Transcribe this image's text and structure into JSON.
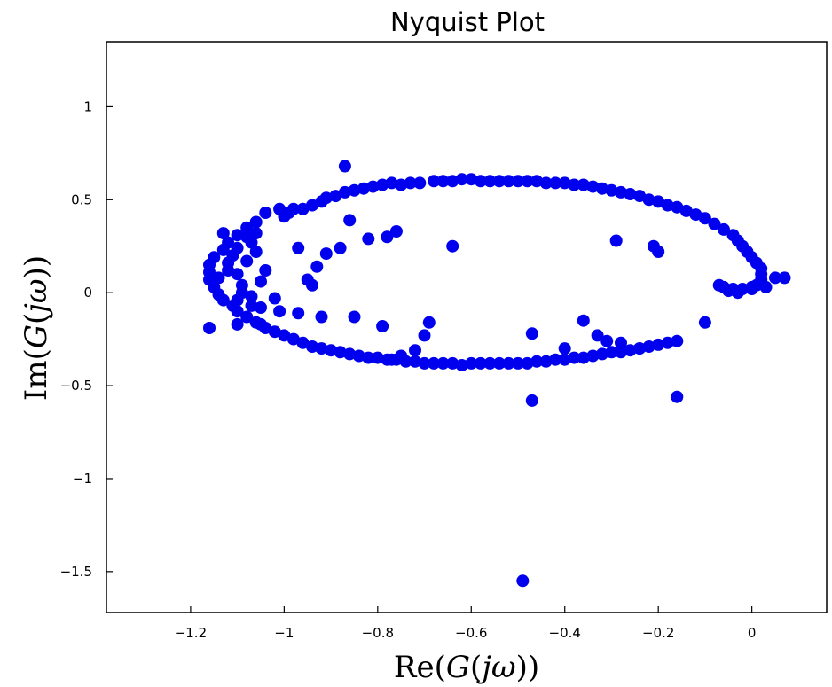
{
  "chart_data": {
    "type": "scatter",
    "title": "Nyquist Plot",
    "xlabel": {
      "pre": "Re(",
      "g": "G",
      "open": "(",
      "j": "j",
      "w": "ω",
      "close": "))"
    },
    "ylabel": {
      "pre": "Im(",
      "g": "G",
      "open": "(",
      "j": "j",
      "w": "ω",
      "close": "))"
    },
    "xlim": [
      -1.38,
      0.16
    ],
    "ylim": [
      -1.72,
      1.35
    ],
    "xticks": [
      {
        "v": -1.2,
        "label": "−1.2"
      },
      {
        "v": -1.0,
        "label": "−1"
      },
      {
        "v": -0.8,
        "label": "−0.8"
      },
      {
        "v": -0.6,
        "label": "−0.6"
      },
      {
        "v": -0.4,
        "label": "−0.4"
      },
      {
        "v": -0.2,
        "label": "−0.2"
      },
      {
        "v": 0.0,
        "label": "0"
      }
    ],
    "yticks": [
      {
        "v": 1.0,
        "label": "1"
      },
      {
        "v": 0.5,
        "label": "0.5"
      },
      {
        "v": 0.0,
        "label": "0"
      },
      {
        "v": -0.5,
        "label": "−0.5"
      },
      {
        "v": -1.0,
        "label": "−1"
      },
      {
        "v": -1.5,
        "label": "−1.5"
      }
    ],
    "grid": false,
    "marker_color": "#0000ee",
    "points": [
      [
        -0.91,
        0.21
      ],
      [
        -0.97,
        0.24
      ],
      [
        -1.01,
        0.45
      ],
      [
        -1.0,
        0.41
      ],
      [
        -0.99,
        0.43
      ],
      [
        -0.98,
        0.45
      ],
      [
        -0.96,
        0.45
      ],
      [
        -0.94,
        0.47
      ],
      [
        -0.92,
        0.49
      ],
      [
        -0.91,
        0.51
      ],
      [
        -0.89,
        0.52
      ],
      [
        -0.87,
        0.54
      ],
      [
        -0.85,
        0.55
      ],
      [
        -0.83,
        0.56
      ],
      [
        -0.81,
        0.57
      ],
      [
        -0.79,
        0.58
      ],
      [
        -0.77,
        0.59
      ],
      [
        -0.75,
        0.58
      ],
      [
        -0.73,
        0.59
      ],
      [
        -0.71,
        0.59
      ],
      [
        -0.68,
        0.6
      ],
      [
        -0.66,
        0.6
      ],
      [
        -0.64,
        0.6
      ],
      [
        -0.62,
        0.61
      ],
      [
        -0.6,
        0.61
      ],
      [
        -0.58,
        0.6
      ],
      [
        -0.56,
        0.6
      ],
      [
        -0.54,
        0.6
      ],
      [
        -0.52,
        0.6
      ],
      [
        -0.5,
        0.6
      ],
      [
        -0.48,
        0.6
      ],
      [
        -0.46,
        0.6
      ],
      [
        -0.44,
        0.59
      ],
      [
        -0.42,
        0.59
      ],
      [
        -0.4,
        0.59
      ],
      [
        -0.38,
        0.58
      ],
      [
        -0.36,
        0.58
      ],
      [
        -0.34,
        0.57
      ],
      [
        -0.32,
        0.56
      ],
      [
        -0.3,
        0.55
      ],
      [
        -0.28,
        0.54
      ],
      [
        -0.26,
        0.53
      ],
      [
        -0.24,
        0.52
      ],
      [
        -0.22,
        0.5
      ],
      [
        -0.2,
        0.49
      ],
      [
        -0.18,
        0.47
      ],
      [
        -0.16,
        0.46
      ],
      [
        -0.14,
        0.44
      ],
      [
        -0.12,
        0.42
      ],
      [
        -0.1,
        0.4
      ],
      [
        -0.08,
        0.37
      ],
      [
        -0.06,
        0.34
      ],
      [
        -0.04,
        0.31
      ],
      [
        -0.03,
        0.28
      ],
      [
        -0.02,
        0.25
      ],
      [
        -0.01,
        0.22
      ],
      [
        0.0,
        0.19
      ],
      [
        0.01,
        0.16
      ],
      [
        0.02,
        0.13
      ],
      [
        0.02,
        0.1
      ],
      [
        0.02,
        0.07
      ],
      [
        0.01,
        0.04
      ],
      [
        0.0,
        0.03
      ],
      [
        -0.02,
        0.02
      ],
      [
        -0.04,
        0.02
      ],
      [
        -0.06,
        0.03
      ],
      [
        -0.07,
        0.04
      ],
      [
        -0.05,
        0.01
      ],
      [
        -0.03,
        0.0
      ],
      [
        0.0,
        0.02
      ],
      [
        0.03,
        0.03
      ],
      [
        0.05,
        0.08
      ],
      [
        0.07,
        0.08
      ],
      [
        -1.04,
        0.43
      ],
      [
        -1.06,
        0.38
      ],
      [
        -1.08,
        0.35
      ],
      [
        -1.1,
        0.31
      ],
      [
        -1.12,
        0.27
      ],
      [
        -1.13,
        0.23
      ],
      [
        -1.15,
        0.19
      ],
      [
        -1.16,
        0.15
      ],
      [
        -1.16,
        0.11
      ],
      [
        -1.16,
        0.07
      ],
      [
        -1.15,
        0.03
      ],
      [
        -1.14,
        -0.01
      ],
      [
        -1.13,
        -0.04
      ],
      [
        -1.11,
        -0.07
      ],
      [
        -1.1,
        -0.1
      ],
      [
        -1.08,
        -0.13
      ],
      [
        -1.06,
        -0.16
      ],
      [
        -1.04,
        -0.19
      ],
      [
        -1.02,
        -0.21
      ],
      [
        -1.0,
        -0.23
      ],
      [
        -0.98,
        -0.25
      ],
      [
        -0.96,
        -0.27
      ],
      [
        -0.94,
        -0.29
      ],
      [
        -0.92,
        -0.3
      ],
      [
        -0.9,
        -0.31
      ],
      [
        -0.88,
        -0.32
      ],
      [
        -0.86,
        -0.33
      ],
      [
        -0.84,
        -0.34
      ],
      [
        -0.82,
        -0.35
      ],
      [
        -0.8,
        -0.35
      ],
      [
        -0.78,
        -0.36
      ],
      [
        -0.76,
        -0.36
      ],
      [
        -0.74,
        -0.37
      ],
      [
        -0.72,
        -0.37
      ],
      [
        -0.7,
        -0.38
      ],
      [
        -0.68,
        -0.38
      ],
      [
        -0.66,
        -0.38
      ],
      [
        -0.64,
        -0.38
      ],
      [
        -0.62,
        -0.39
      ],
      [
        -0.6,
        -0.38
      ],
      [
        -0.58,
        -0.38
      ],
      [
        -0.56,
        -0.38
      ],
      [
        -0.54,
        -0.38
      ],
      [
        -0.52,
        -0.38
      ],
      [
        -0.5,
        -0.38
      ],
      [
        -0.48,
        -0.38
      ],
      [
        -0.46,
        -0.37
      ],
      [
        -0.44,
        -0.37
      ],
      [
        -0.42,
        -0.36
      ],
      [
        -0.4,
        -0.36
      ],
      [
        -0.38,
        -0.35
      ],
      [
        -0.36,
        -0.35
      ],
      [
        -0.34,
        -0.34
      ],
      [
        -0.32,
        -0.33
      ],
      [
        -0.3,
        -0.32
      ],
      [
        -0.28,
        -0.32
      ],
      [
        -0.26,
        -0.31
      ],
      [
        -0.24,
        -0.3
      ],
      [
        -0.22,
        -0.29
      ],
      [
        -0.2,
        -0.28
      ],
      [
        -0.18,
        -0.27
      ],
      [
        -0.16,
        -0.26
      ],
      [
        -1.1,
        0.24
      ],
      [
        -1.08,
        0.3
      ],
      [
        -1.12,
        0.16
      ],
      [
        -1.1,
        0.1
      ],
      [
        -1.09,
        0.04
      ],
      [
        -1.07,
        -0.02
      ],
      [
        -1.05,
        -0.08
      ],
      [
        -1.13,
        0.32
      ],
      [
        -1.11,
        0.2
      ],
      [
        -1.14,
        0.08
      ],
      [
        -1.12,
        0.12
      ],
      [
        -1.06,
        0.22
      ],
      [
        -1.04,
        0.12
      ],
      [
        -1.05,
        0.06
      ],
      [
        -1.08,
        0.17
      ],
      [
        -1.07,
        0.27
      ],
      [
        -1.06,
        0.32
      ],
      [
        -1.09,
        0.0
      ],
      [
        -1.07,
        -0.07
      ],
      [
        -1.1,
        -0.04
      ],
      [
        -0.87,
        0.68
      ],
      [
        -0.88,
        0.24
      ],
      [
        -0.93,
        0.14
      ],
      [
        -0.94,
        0.04
      ],
      [
        -0.95,
        0.07
      ],
      [
        -0.97,
        -0.11
      ],
      [
        -0.92,
        -0.13
      ],
      [
        -0.86,
        0.39
      ],
      [
        -0.82,
        0.29
      ],
      [
        -0.78,
        0.3
      ],
      [
        -0.76,
        0.33
      ],
      [
        -0.85,
        -0.13
      ],
      [
        -0.79,
        -0.18
      ],
      [
        -1.02,
        -0.03
      ],
      [
        -1.01,
        -0.1
      ],
      [
        -1.16,
        -0.19
      ],
      [
        -1.1,
        -0.17
      ],
      [
        -1.05,
        -0.17
      ],
      [
        -0.64,
        0.25
      ],
      [
        -0.69,
        -0.16
      ],
      [
        -0.7,
        -0.23
      ],
      [
        -0.72,
        -0.31
      ],
      [
        -0.75,
        -0.34
      ],
      [
        -0.77,
        -0.36
      ],
      [
        -0.29,
        0.28
      ],
      [
        -0.21,
        0.25
      ],
      [
        -0.2,
        0.22
      ],
      [
        -0.1,
        -0.16
      ],
      [
        -0.24,
        -0.3
      ],
      [
        -0.28,
        -0.27
      ],
      [
        -0.31,
        -0.26
      ],
      [
        -0.36,
        -0.15
      ],
      [
        -0.33,
        -0.23
      ],
      [
        -0.4,
        -0.3
      ],
      [
        -0.47,
        -0.22
      ],
      [
        -0.47,
        -0.58
      ],
      [
        -0.16,
        -0.56
      ],
      [
        -0.49,
        -1.55
      ]
    ]
  }
}
